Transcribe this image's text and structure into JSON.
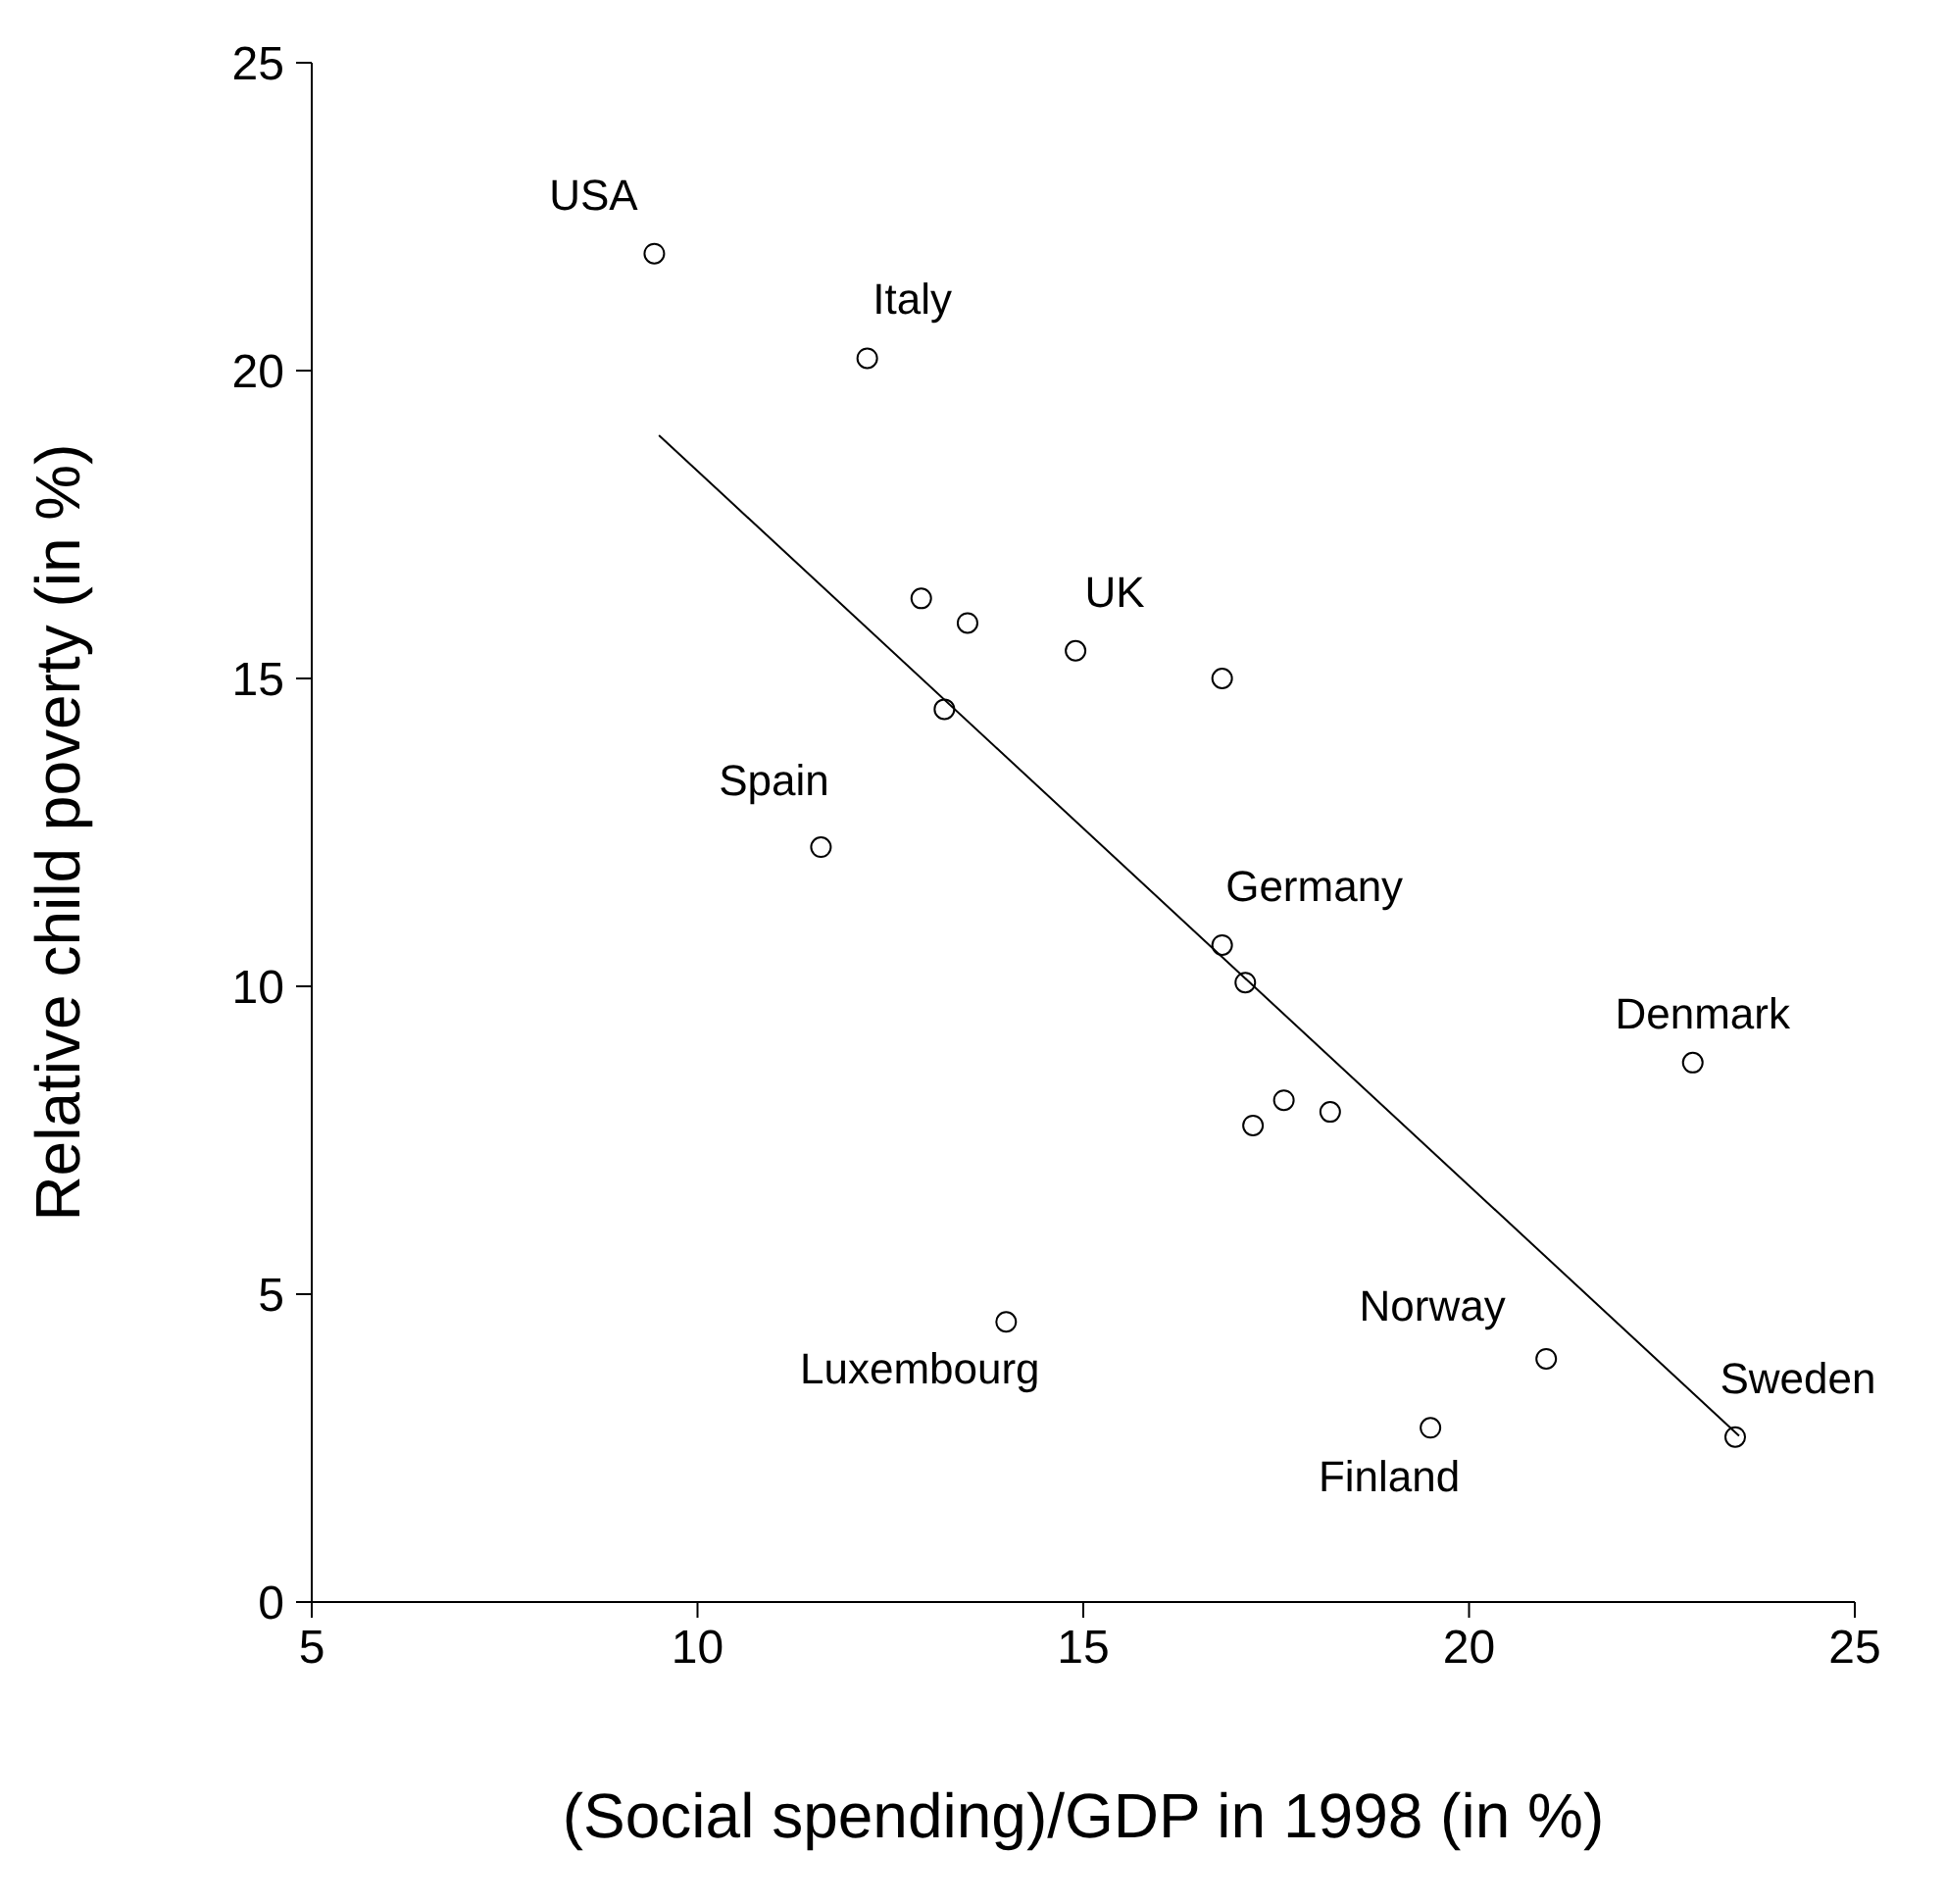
{
  "chart_data": {
    "type": "scatter",
    "xlabel": "(Social spending)/GDP in 1998 (in %)",
    "ylabel": "Relative child poverty (in %)",
    "xlim": [
      5,
      25
    ],
    "xticks": [
      5,
      10,
      15,
      20,
      25
    ],
    "ylim": [
      0,
      25
    ],
    "yticks": [
      0,
      5,
      10,
      15,
      20,
      25
    ],
    "grid": false,
    "legend": false,
    "marker": "circle",
    "series": [
      {
        "color": "#000000",
        "x": [
          9.44,
          12.2,
          12.9,
          13.5,
          14.9,
          16.8,
          13.2,
          11.6,
          16.8,
          17.1,
          17.6,
          17.2,
          18.2,
          22.9,
          14.0,
          21.0,
          19.5,
          23.45
        ],
        "values": [
          21.9,
          20.2,
          16.3,
          15.9,
          15.45,
          15.0,
          14.5,
          12.26,
          10.67,
          10.06,
          8.15,
          7.74,
          7.96,
          8.76,
          4.55,
          3.95,
          2.83,
          2.68
        ]
      },
      {
        "type": "line",
        "marker": "none",
        "color": "#000000",
        "x": [
          9.5,
          23.5
        ],
        "values": [
          18.95,
          2.7
        ]
      }
    ],
    "annotations": [
      {
        "text": "USA",
        "x": 9.44,
        "y": 21.9
      },
      {
        "text": "Italy",
        "x": 12.2,
        "y": 20.2
      },
      {
        "text": "UK",
        "x": 14.9,
        "y": 15.45
      },
      {
        "text": "Spain",
        "x": 11.6,
        "y": 12.26
      },
      {
        "text": "Germany",
        "x": 16.8,
        "y": 10.67
      },
      {
        "text": "Denmark",
        "x": 22.9,
        "y": 8.76
      },
      {
        "text": "Luxembourg",
        "x": 14.0,
        "y": 4.55
      },
      {
        "text": "Norway",
        "x": 21.0,
        "y": 3.95
      },
      {
        "text": "Finland",
        "x": 19.5,
        "y": 2.83
      },
      {
        "text": "Sweden",
        "x": 23.45,
        "y": 2.68
      }
    ]
  }
}
